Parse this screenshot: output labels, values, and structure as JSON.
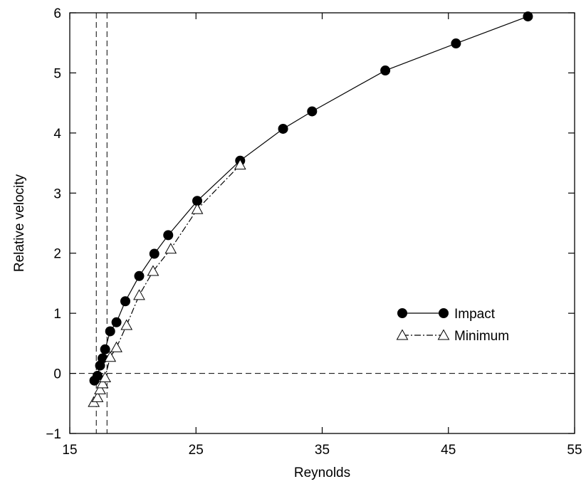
{
  "chart_data": {
    "type": "line",
    "title": "",
    "xlabel": "Reynolds",
    "ylabel": "Relative velocity",
    "xlim": [
      15,
      55
    ],
    "ylim": [
      -1,
      6
    ],
    "xticks": [
      15,
      25,
      35,
      45,
      55
    ],
    "yticks": [
      -1,
      0,
      1,
      2,
      3,
      4,
      5,
      6
    ],
    "xtick_labels": [
      "15",
      "25",
      "35",
      "45",
      "55"
    ],
    "ytick_labels": [
      "−1",
      "0",
      "1",
      "2",
      "3",
      "4",
      "5",
      "6"
    ],
    "grid": false,
    "legend_position": "center-right",
    "reference_lines": {
      "horizontal_y": [
        0
      ],
      "vertical_x": [
        17.1,
        17.95
      ]
    },
    "series": [
      {
        "name": "Impact",
        "marker": "filled-circle",
        "line_style": "solid",
        "color": "#000000",
        "x": [
          16.95,
          17.2,
          17.4,
          17.6,
          17.8,
          18.2,
          18.7,
          19.4,
          20.5,
          21.7,
          22.8,
          25.1,
          28.5,
          31.9,
          34.2,
          40.0,
          45.6,
          51.3
        ],
        "y": [
          -0.12,
          -0.04,
          0.13,
          0.25,
          0.4,
          0.7,
          0.85,
          1.2,
          1.62,
          1.99,
          2.3,
          2.87,
          3.54,
          4.07,
          4.36,
          5.04,
          5.49,
          5.94
        ]
      },
      {
        "name": "Minimum",
        "marker": "open-triangle",
        "line_style": "dash-dot",
        "color": "#000000",
        "x": [
          16.9,
          17.2,
          17.4,
          17.6,
          17.8,
          18.2,
          18.7,
          19.5,
          20.5,
          21.6,
          23.0,
          25.1,
          28.5
        ],
        "y": [
          -0.48,
          -0.4,
          -0.27,
          -0.17,
          -0.07,
          0.27,
          0.43,
          0.8,
          1.3,
          1.7,
          2.07,
          2.73,
          3.47
        ]
      }
    ]
  }
}
